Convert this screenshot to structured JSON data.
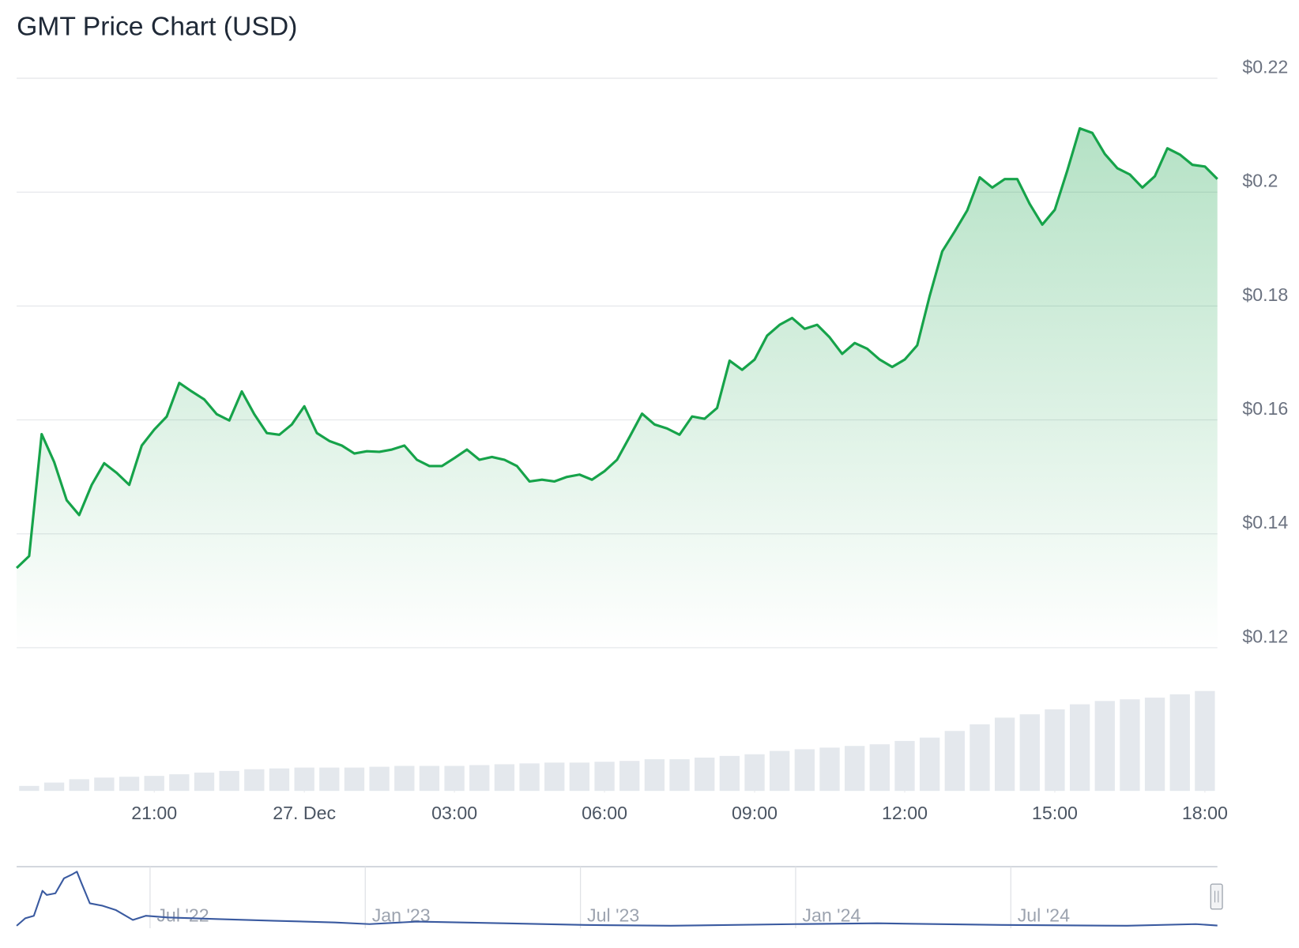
{
  "chart_data": [
    {
      "type": "line",
      "title": "GMT Price Chart (USD)",
      "color": "#16a34a",
      "area": true,
      "grid": true,
      "x": [
        18.25,
        18.5,
        18.75,
        19,
        19.25,
        19.5,
        19.75,
        20,
        20.25,
        20.5,
        20.75,
        21,
        21.25,
        21.5,
        21.75,
        22,
        22.25,
        22.5,
        22.75,
        23,
        23.25,
        23.5,
        23.75,
        24,
        24.25,
        24.5,
        24.75,
        25,
        25.25,
        25.5,
        25.75,
        26,
        26.25,
        26.5,
        26.75,
        27,
        27.25,
        27.5,
        27.75,
        28,
        28.25,
        28.5,
        28.75,
        29,
        29.25,
        29.5,
        29.75,
        30,
        30.25,
        30.5,
        30.75,
        31,
        31.25,
        31.5,
        31.75,
        32,
        32.25,
        32.5,
        32.75,
        33,
        33.25,
        33.5,
        33.75,
        34,
        34.25,
        34.5,
        34.75,
        35,
        35.25,
        35.5,
        35.75,
        36,
        36.25,
        36.5,
        36.75,
        37,
        37.25,
        37.5,
        37.75,
        38,
        38.25,
        38.5,
        38.75,
        39,
        39.25,
        39.5,
        39.75,
        40,
        40.25,
        40.5,
        40.75,
        41,
        41.25,
        41.5,
        41.75,
        42,
        42.25
      ],
      "values": [
        0.134,
        0.1361,
        0.1575,
        0.1526,
        0.1459,
        0.1433,
        0.1486,
        0.1524,
        0.1507,
        0.1486,
        0.1555,
        0.1583,
        0.1606,
        0.1665,
        0.165,
        0.1636,
        0.161,
        0.1599,
        0.165,
        0.161,
        0.1577,
        0.1574,
        0.1592,
        0.1624,
        0.1577,
        0.1563,
        0.1555,
        0.1541,
        0.1545,
        0.1544,
        0.1548,
        0.1555,
        0.153,
        0.1519,
        0.1519,
        0.1533,
        0.1548,
        0.153,
        0.1535,
        0.153,
        0.1519,
        0.1492,
        0.1495,
        0.1492,
        0.15,
        0.1504,
        0.1495,
        0.151,
        0.153,
        0.157,
        0.1611,
        0.1592,
        0.1585,
        0.1574,
        0.1606,
        0.1602,
        0.1621,
        0.1704,
        0.1688,
        0.1706,
        0.1748,
        0.1767,
        0.1779,
        0.176,
        0.1767,
        0.1745,
        0.1716,
        0.1735,
        0.1725,
        0.1706,
        0.1693,
        0.1706,
        0.1731,
        0.1818,
        0.1896,
        0.1931,
        0.1968,
        0.2026,
        0.2008,
        0.2023,
        0.2023,
        0.1979,
        0.1943,
        0.1969,
        0.2038,
        0.2112,
        0.2104,
        0.2067,
        0.2042,
        0.2031,
        0.2008,
        0.2028,
        0.2077,
        0.2066,
        0.2048,
        0.2045,
        0.2023
      ],
      "xlim": [
        18.25,
        42.25
      ],
      "xticks": [
        {
          "value": 21,
          "label": "21:00"
        },
        {
          "value": 24,
          "label": "27. Dec"
        },
        {
          "value": 27,
          "label": "03:00"
        },
        {
          "value": 30,
          "label": "06:00"
        },
        {
          "value": 33,
          "label": "09:00"
        },
        {
          "value": 36,
          "label": "12:00"
        },
        {
          "value": 39,
          "label": "15:00"
        },
        {
          "value": 42,
          "label": "18:00"
        }
      ],
      "ylim": [
        0.12,
        0.22
      ],
      "yticks": [
        {
          "value": 0.12,
          "label": "$0.12"
        },
        {
          "value": 0.14,
          "label": "$0.14"
        },
        {
          "value": 0.16,
          "label": "$0.16"
        },
        {
          "value": 0.18,
          "label": "$0.18"
        },
        {
          "value": 0.2,
          "label": "$0.2"
        },
        {
          "value": 0.22,
          "label": "$0.22"
        }
      ]
    },
    {
      "type": "bar",
      "color": "#e4e8ed",
      "x": [
        18.5,
        19,
        19.5,
        20,
        20.5,
        21,
        21.5,
        22,
        22.5,
        23,
        23.5,
        24,
        24.5,
        25,
        25.5,
        26,
        26.5,
        27,
        27.5,
        28,
        28.5,
        29,
        29.5,
        30,
        30.5,
        31,
        31.5,
        32,
        32.5,
        33,
        33.5,
        34,
        34.5,
        35,
        35.5,
        36,
        36.5,
        37,
        37.5,
        38,
        38.5,
        39,
        39.5,
        40,
        40.5,
        41,
        41.5,
        42
      ],
      "values": [
        6,
        10,
        14,
        16,
        17,
        18,
        20,
        22,
        24,
        26,
        27,
        28,
        28,
        28,
        29,
        30,
        30,
        30,
        31,
        32,
        33,
        34,
        34,
        35,
        36,
        38,
        38,
        40,
        42,
        44,
        48,
        50,
        52,
        54,
        56,
        60,
        64,
        72,
        80,
        88,
        92,
        98,
        104,
        108,
        110,
        112,
        116,
        120
      ],
      "xlim": [
        18.25,
        42.25
      ],
      "ylim": [
        0,
        130
      ]
    },
    {
      "type": "line",
      "color": "#3a5aa0",
      "x": [
        2022.19,
        2022.21,
        2022.23,
        2022.25,
        2022.26,
        2022.28,
        2022.3,
        2022.32,
        2022.33,
        2022.34,
        2022.36,
        2022.39,
        2022.42,
        2022.46,
        2022.49,
        2022.54,
        2022.66,
        2022.79,
        2022.93,
        2023.01,
        2023.12,
        2023.32,
        2023.51,
        2023.71,
        2024,
        2024.19,
        2024.48,
        2024.77,
        2024.93,
        2024.98
      ],
      "values": [
        0.18,
        0.72,
        0.9,
        2.7,
        2.4,
        2.52,
        3.6,
        3.9,
        4.08,
        3.3,
        1.8,
        1.62,
        1.32,
        0.6,
        0.9,
        0.78,
        0.66,
        0.54,
        0.42,
        0.3,
        0.48,
        0.36,
        0.24,
        0.18,
        0.3,
        0.36,
        0.24,
        0.18,
        0.3,
        0.2
      ],
      "xlim": [
        2022.19,
        2024.98
      ],
      "ylim": [
        0,
        4.2
      ],
      "xticks": [
        {
          "value": 2022.5,
          "label": "Jul '22"
        },
        {
          "value": 2023,
          "label": "Jan '23"
        },
        {
          "value": 2023.5,
          "label": "Jul '23"
        },
        {
          "value": 2024,
          "label": "Jan '24"
        },
        {
          "value": 2024.5,
          "label": "Jul '24"
        }
      ]
    }
  ]
}
